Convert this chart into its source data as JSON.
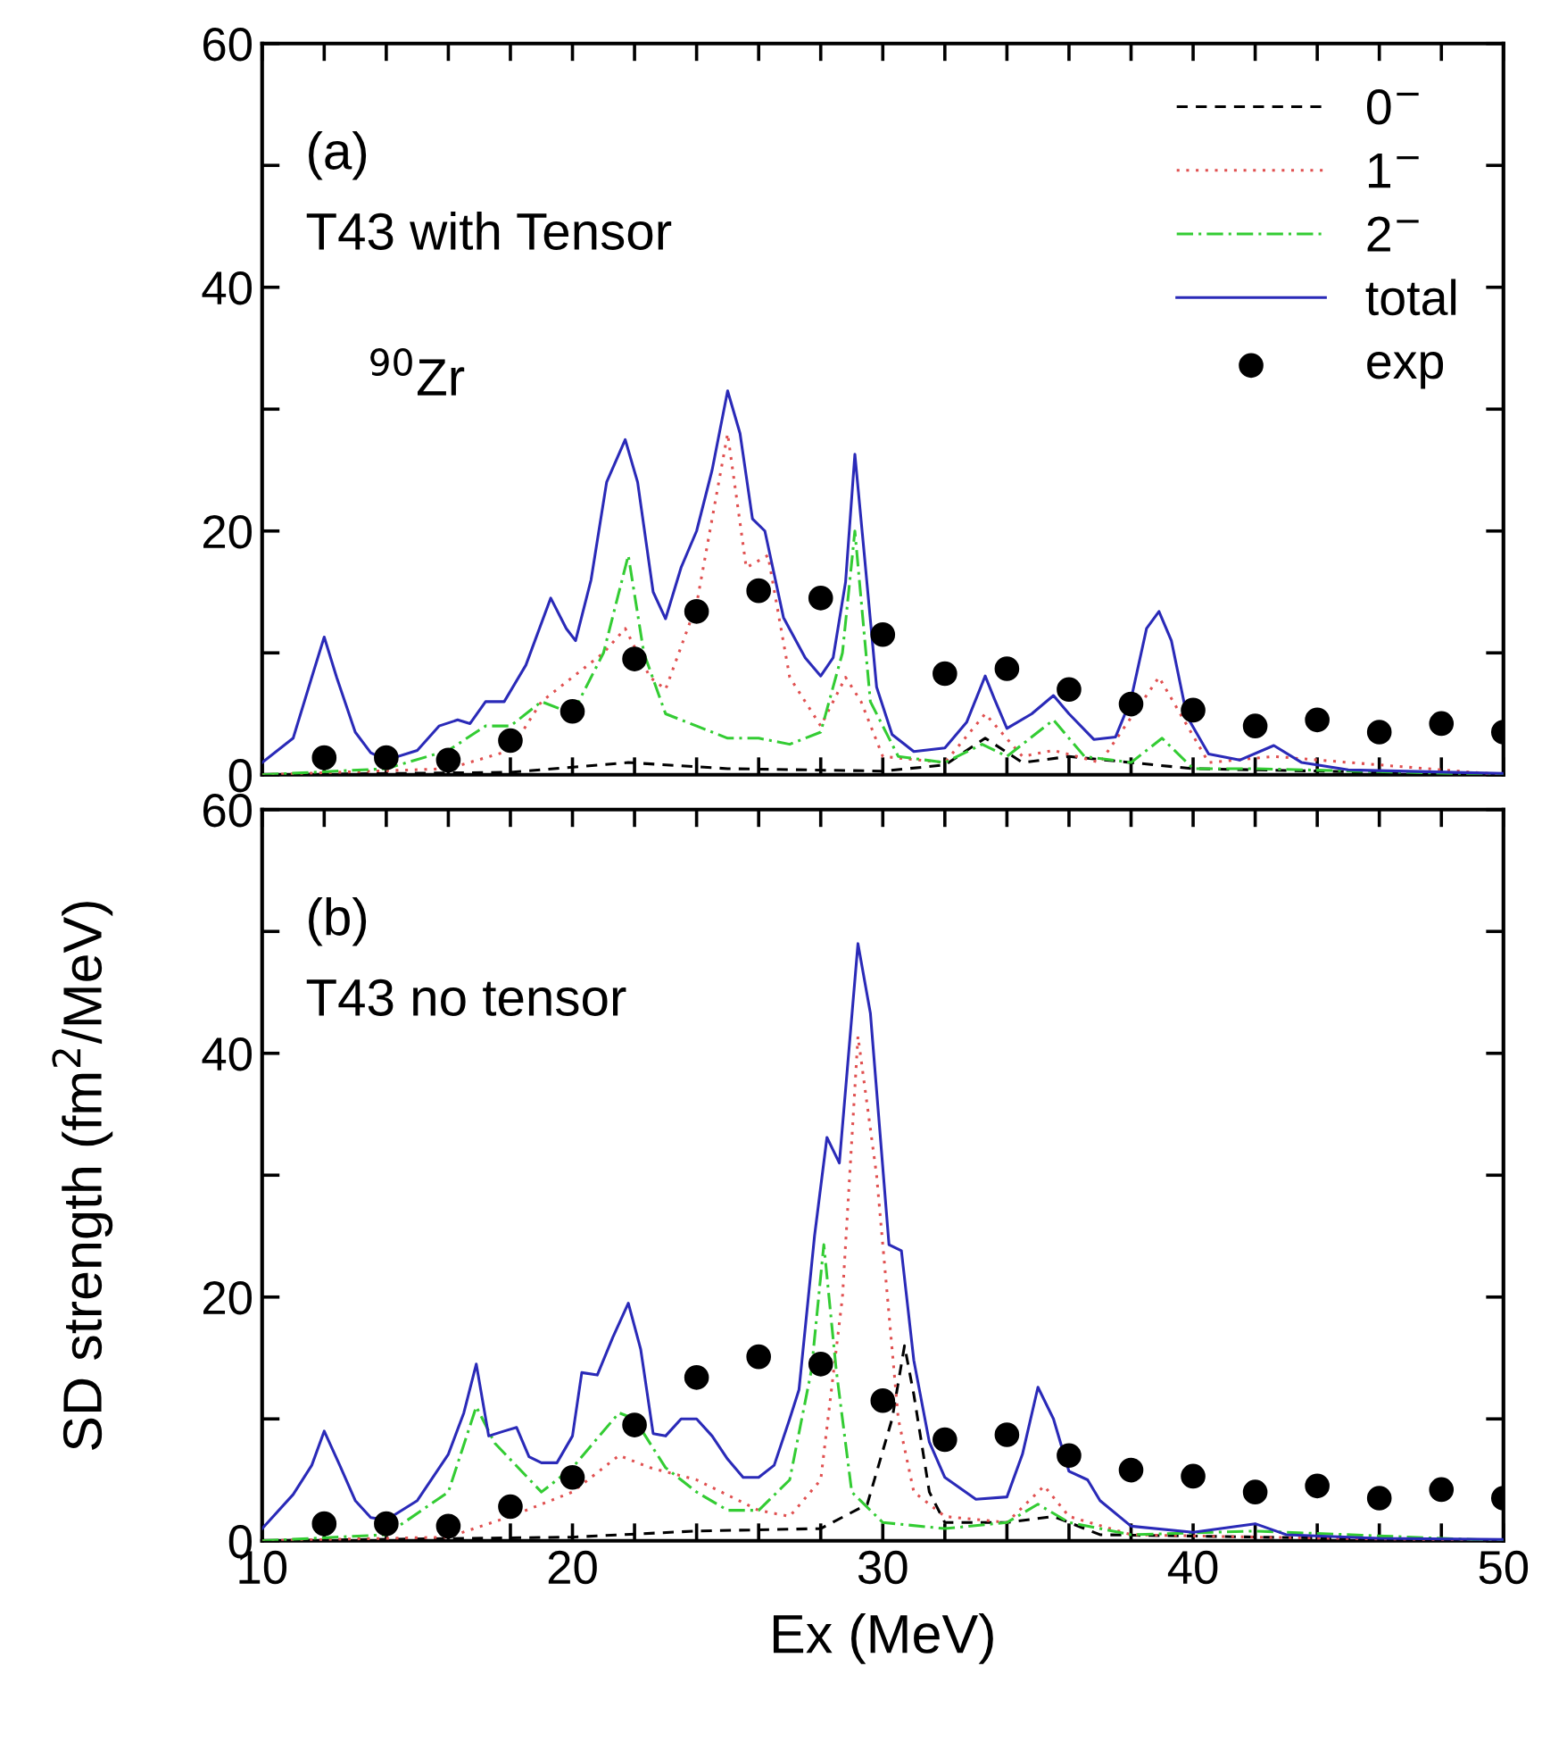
{
  "chart_data": [
    {
      "type": "line",
      "annotations": [
        "(a)",
        "T43 with Tensor",
        "$^{90}$Zr"
      ],
      "xlim": [
        10,
        50
      ],
      "ylim": [
        0,
        60
      ],
      "xticks": [
        10,
        {
          "value": 12,
          "label": null
        },
        {
          "value": 14,
          "label": null
        },
        {
          "value": 16,
          "label": null
        },
        {
          "value": 18,
          "label": null
        },
        20,
        {
          "value": 22,
          "label": null
        },
        {
          "value": 24,
          "label": null
        },
        {
          "value": 26,
          "label": null
        },
        {
          "value": 28,
          "label": null
        },
        30,
        {
          "value": 32,
          "label": null
        },
        {
          "value": 34,
          "label": null
        },
        {
          "value": 36,
          "label": null
        },
        {
          "value": 38,
          "label": null
        },
        40,
        {
          "value": 42,
          "label": null
        },
        {
          "value": 44,
          "label": null
        },
        {
          "value": 46,
          "label": null
        },
        {
          "value": 48,
          "label": null
        },
        50
      ],
      "yticks": [
        0,
        {
          "value": 10,
          "label": null
        },
        20,
        {
          "value": 30,
          "label": null
        },
        40,
        {
          "value": 50,
          "label": null
        },
        60
      ],
      "tick_labels": "y",
      "legend": "top right",
      "grid": false,
      "series": [
        {
          "name": "0$^{−}$",
          "color": "#000000",
          "line_style": "dashed",
          "x": [
            10,
            18,
            21.8,
            25,
            30,
            32,
            33.3,
            34.5,
            36,
            40,
            50
          ],
          "values": [
            0,
            0.2,
            1,
            0.5,
            0.3,
            0.8,
            3,
            1,
            1.5,
            0.5,
            0
          ]
        },
        {
          "name": "1$^{−}$",
          "color": "#e05050",
          "line_style": "dotted",
          "x": [
            10,
            16,
            18,
            19,
            20,
            21,
            21.7,
            22.5,
            23,
            24,
            25,
            25.6,
            26.3,
            27,
            28,
            28.8,
            29.3,
            30,
            32,
            33.3,
            34.5,
            35.5,
            37,
            38.9,
            40.5,
            42.6,
            50
          ],
          "values": [
            0,
            0.5,
            2,
            6,
            8,
            10,
            12,
            8,
            7,
            14,
            28,
            17,
            18,
            8,
            4,
            8,
            6,
            1.5,
            1,
            5,
            1.5,
            2,
            1,
            8,
            1,
            1.5,
            0
          ]
        },
        {
          "name": "2$^{−}$",
          "color": "#33cc33",
          "line_style": "dashdot",
          "x": [
            10,
            14,
            16,
            17.2,
            18,
            19,
            20,
            21,
            21.8,
            22.3,
            23,
            24,
            25,
            26,
            27,
            28,
            28.7,
            29.1,
            29.6,
            30.5,
            32,
            33.2,
            34,
            35.5,
            36.5,
            38,
            39,
            40,
            42,
            50
          ],
          "values": [
            0,
            0.5,
            2,
            4,
            4,
            6,
            5,
            10,
            18,
            10,
            5,
            4,
            3,
            3,
            2.5,
            3.5,
            10,
            20,
            6,
            1.5,
            1,
            2.5,
            1.5,
            4.5,
            1.5,
            1,
            3,
            0.5,
            0.5,
            0
          ]
        },
        {
          "name": "total",
          "color": "#2a2ab8",
          "line_style": "solid",
          "x": [
            10,
            11,
            11.6,
            12,
            12.4,
            13,
            13.5,
            14,
            15,
            15.7,
            16.3,
            16.7,
            17.2,
            17.8,
            18.5,
            19.3,
            19.8,
            20.1,
            20.6,
            21.1,
            21.7,
            22.1,
            22.6,
            23,
            23.5,
            24,
            24.5,
            25,
            25.4,
            25.8,
            26.2,
            26.8,
            27.5,
            28,
            28.4,
            28.8,
            29.1,
            29.4,
            29.8,
            30.3,
            31,
            32,
            32.7,
            33.3,
            33.6,
            34,
            34.8,
            35.5,
            36,
            36.8,
            37.5,
            38,
            38.5,
            38.9,
            39.3,
            39.8,
            40.5,
            41.5,
            42.6,
            43.5,
            45,
            50
          ],
          "values": [
            1,
            3,
            8,
            11.3,
            8,
            3.5,
            1.8,
            1.2,
            2,
            4,
            4.5,
            4.2,
            6,
            6,
            9,
            14.5,
            12,
            11,
            16,
            24,
            27.5,
            24,
            15,
            12.8,
            17,
            20,
            25,
            31.5,
            28,
            21,
            20,
            12.9,
            9.6,
            8.1,
            9.6,
            15.8,
            26.3,
            18.2,
            7.2,
            3.3,
            1.9,
            2.2,
            4.3,
            8.1,
            6.2,
            3.8,
            5,
            6.5,
            5,
            2.9,
            3.1,
            6.2,
            12,
            13.4,
            11,
            4.8,
            1.7,
            1.2,
            2.4,
            1,
            0.4,
            0.1
          ]
        },
        {
          "name": "exp",
          "type": "scatter",
          "marker": "circle",
          "color": "#000000",
          "x": [
            12,
            14,
            16,
            18,
            20,
            22,
            24,
            26,
            28,
            30,
            32,
            34,
            36,
            38,
            40,
            42,
            44,
            46,
            48,
            50
          ],
          "values": [
            1.4,
            1.4,
            1.2,
            2.8,
            5.2,
            9.5,
            13.4,
            15.1,
            14.5,
            11.5,
            8.3,
            8.7,
            7.0,
            5.8,
            5.3,
            4.0,
            4.5,
            3.5,
            4.2,
            3.5
          ]
        }
      ]
    },
    {
      "type": "line",
      "annotations": [
        "(b)",
        "T43 no tensor"
      ],
      "xlabel": "Ex (MeV)",
      "ylabel": "SD strength (fm$^{2}$/MeV)",
      "xlim": [
        10,
        50
      ],
      "ylim": [
        0,
        60
      ],
      "xticks": [
        10,
        {
          "value": 12,
          "label": null
        },
        {
          "value": 14,
          "label": null
        },
        {
          "value": 16,
          "label": null
        },
        {
          "value": 18,
          "label": null
        },
        20,
        {
          "value": 22,
          "label": null
        },
        {
          "value": 24,
          "label": null
        },
        {
          "value": 26,
          "label": null
        },
        {
          "value": 28,
          "label": null
        },
        30,
        {
          "value": 32,
          "label": null
        },
        {
          "value": 34,
          "label": null
        },
        {
          "value": 36,
          "label": null
        },
        {
          "value": 38,
          "label": null
        },
        40,
        {
          "value": 42,
          "label": null
        },
        {
          "value": 44,
          "label": null
        },
        {
          "value": 46,
          "label": null
        },
        {
          "value": 48,
          "label": null
        },
        50
      ],
      "yticks": [
        0,
        {
          "value": 10,
          "label": null
        },
        20,
        {
          "value": 30,
          "label": null
        },
        40,
        {
          "value": 50,
          "label": null
        },
        60
      ],
      "grid": false,
      "series": [
        {
          "color": "#000000",
          "line_style": "dashed",
          "x": [
            10,
            20,
            24,
            28,
            29.5,
            30.3,
            30.7,
            31,
            31.5,
            32,
            34,
            35.5,
            37,
            50
          ],
          "values": [
            0,
            0.3,
            0.8,
            1,
            3,
            10,
            16,
            12,
            4,
            1.5,
            1.5,
            2,
            0.5,
            0
          ]
        },
        {
          "color": "#e05050",
          "line_style": "dotted",
          "x": [
            10,
            16,
            18,
            20,
            21.5,
            22.5,
            24,
            26,
            27,
            28,
            28.7,
            29.2,
            29.8,
            30.5,
            31,
            32,
            34,
            35.2,
            36,
            38,
            42,
            50
          ],
          "values": [
            0,
            0.3,
            2,
            4,
            7,
            6,
            5,
            2.5,
            2,
            5,
            20,
            41.4,
            30,
            10,
            4,
            2,
            1.5,
            4.5,
            2,
            0.5,
            0.3,
            0
          ]
        },
        {
          "color": "#33cc33",
          "line_style": "dashdot",
          "x": [
            10,
            14,
            16,
            16.9,
            17.5,
            19,
            20,
            21.5,
            22,
            23,
            24,
            25,
            26,
            27,
            27.7,
            28.1,
            28.5,
            29,
            30,
            32,
            34,
            35,
            36,
            38,
            42,
            50
          ],
          "values": [
            0,
            0.5,
            4,
            11,
            8,
            4,
            6,
            10.5,
            10,
            6,
            4,
            2.5,
            2.5,
            5,
            14,
            24.3,
            14,
            4,
            1.5,
            1,
            1.5,
            3,
            1.5,
            0.5,
            0.8,
            0
          ]
        },
        {
          "color": "#2a2ab8",
          "line_style": "solid",
          "x": [
            10,
            11,
            11.6,
            12,
            12.5,
            13,
            13.5,
            14,
            15,
            16,
            16.5,
            16.9,
            17.3,
            17.8,
            18.2,
            18.6,
            19,
            19.5,
            20,
            20.3,
            20.8,
            21.3,
            21.8,
            22.2,
            22.6,
            23,
            23.5,
            24,
            24.5,
            25,
            25.5,
            26,
            26.5,
            27,
            27.3,
            27.8,
            28.2,
            28.6,
            29.2,
            29.6,
            30.2,
            30.6,
            31,
            31.5,
            32,
            33,
            34,
            34.5,
            35,
            35.5,
            36,
            36.6,
            37,
            38,
            40,
            42,
            43,
            46,
            50
          ],
          "values": [
            1,
            3.8,
            6.2,
            9,
            6.2,
            3.3,
            1.9,
            1.7,
            3.3,
            7.1,
            10.5,
            14.5,
            8.6,
            9,
            9.3,
            6.9,
            6.4,
            6.4,
            8.6,
            13.8,
            13.6,
            16.7,
            19.5,
            15.7,
            8.8,
            8.6,
            10,
            10,
            8.6,
            6.7,
            5.2,
            5.2,
            6.2,
            10,
            12.4,
            25,
            33.1,
            31,
            49,
            43.3,
            24.3,
            23.8,
            14.8,
            8.1,
            5.2,
            3.4,
            3.6,
            7.1,
            12.6,
            10,
            5.7,
            5,
            3.3,
            1.2,
            0.7,
            1.4,
            0.5,
            0.2,
            0.1
          ]
        },
        {
          "type": "scatter",
          "marker": "circle",
          "color": "#000000",
          "x": [
            12,
            14,
            16,
            18,
            20,
            22,
            24,
            26,
            28,
            30,
            32,
            34,
            36,
            38,
            40,
            42,
            44,
            46,
            48,
            50
          ],
          "values": [
            1.4,
            1.4,
            1.2,
            2.8,
            5.2,
            9.5,
            13.4,
            15.1,
            14.5,
            11.5,
            8.3,
            8.7,
            7.0,
            5.8,
            5.3,
            4.0,
            4.5,
            3.5,
            4.2,
            3.5
          ]
        }
      ]
    }
  ]
}
